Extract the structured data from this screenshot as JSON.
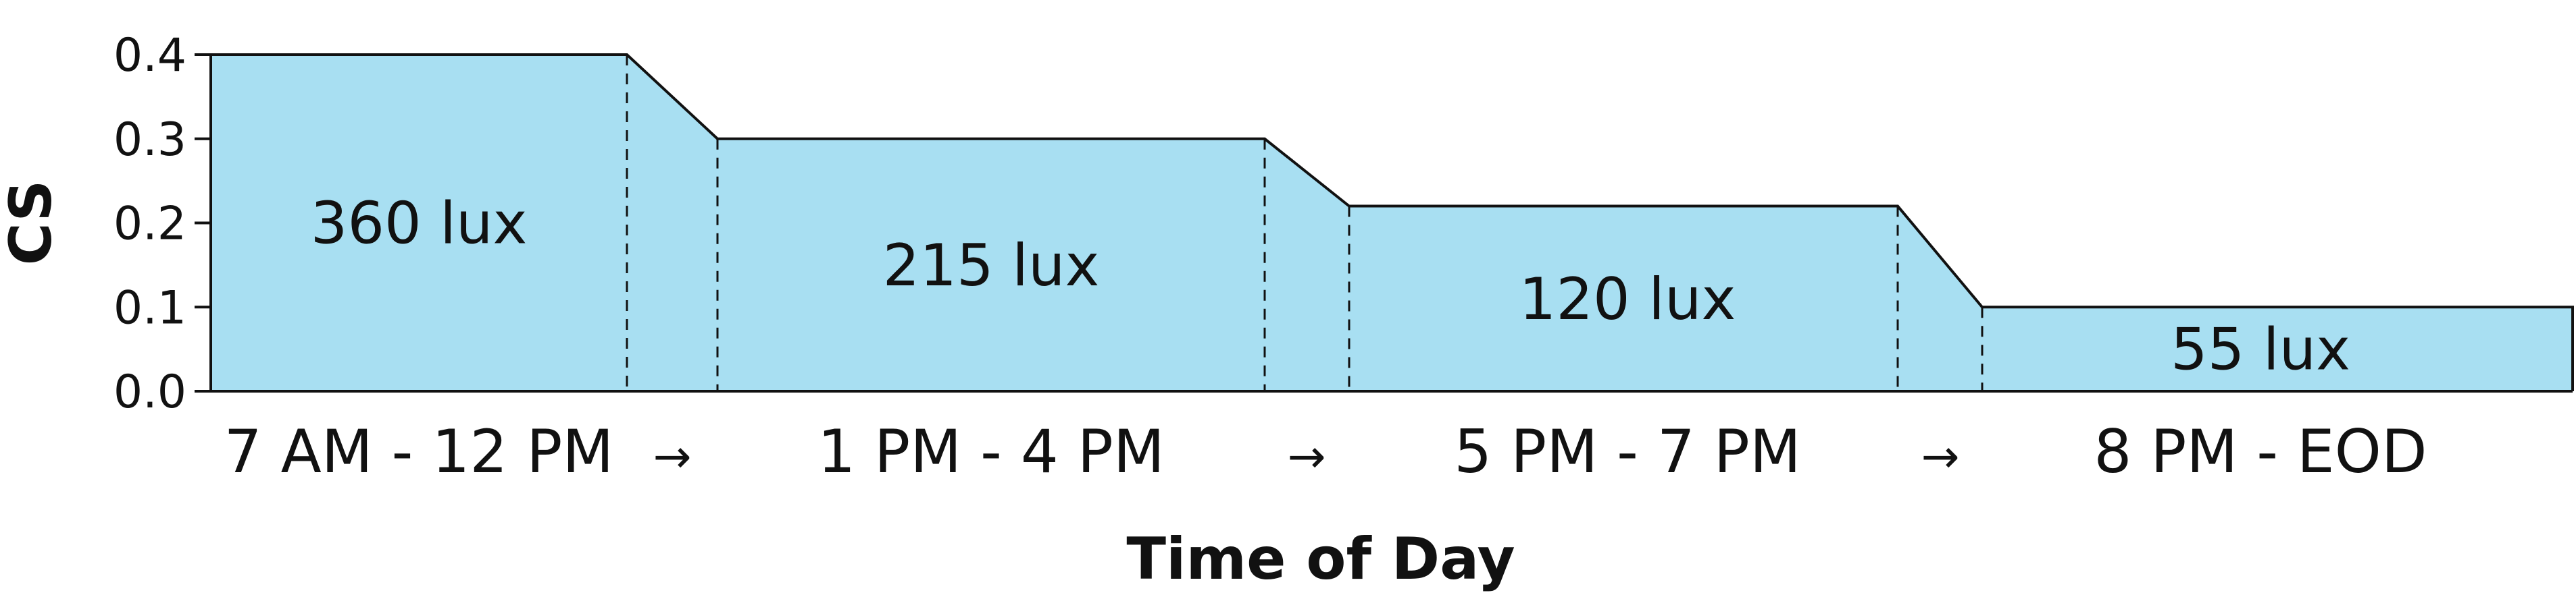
{
  "chart_data": {
    "type": "area",
    "xlabel": "Time of Day",
    "ylabel": "CS",
    "ylim": [
      0,
      0.4
    ],
    "yticks": [
      "0.0",
      "0.1",
      "0.2",
      "0.3",
      "0.4"
    ],
    "fill_color": "#a8dff2",
    "line_color": "#111111",
    "grid": false,
    "periods": [
      {
        "label": "7 AM - 12 PM",
        "cs": 0.4,
        "lux_label": "360 lux"
      },
      {
        "label": "1 PM - 4 PM",
        "cs": 0.3,
        "lux_label": "215 lux"
      },
      {
        "label": "5 PM - 7 PM",
        "cs": 0.22,
        "lux_label": "120 lux"
      },
      {
        "label": "8 PM - EOD",
        "cs": 0.1,
        "lux_label": "55 lux"
      }
    ],
    "transition_symbol": "→"
  }
}
